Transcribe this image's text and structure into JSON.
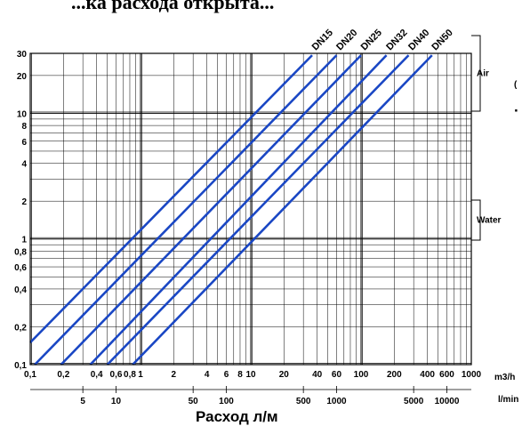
{
  "title": "...ка расхода открыта...",
  "corner_text": "(",
  "corner_dot": "·",
  "chart_data": {
    "type": "line",
    "x_scale": "log",
    "y_scale": "log",
    "xlim": [
      0.1,
      1000
    ],
    "ylim": [
      0.1,
      30
    ],
    "grid": true,
    "xlabel": "Расход л/м",
    "x_unit_top": "m3/h",
    "x_unit_bottom": "l/min",
    "x_ticks_top": [
      "0,1",
      "0,2",
      "0,4",
      "0,6",
      "0,8",
      "1",
      "2",
      "4",
      "6",
      "8",
      "10",
      "20",
      "40",
      "60",
      "100",
      "200",
      "400",
      "600",
      "1000"
    ],
    "x_ticks_bottom": [
      "5",
      "10",
      "50",
      "100",
      "500",
      "1000",
      "5000",
      "10000"
    ],
    "y_ticks": [
      "30",
      "20",
      "10",
      "8",
      "6",
      "4",
      "2",
      "1",
      "0,8",
      "0,6",
      "0,4",
      "0,2",
      "0,1"
    ],
    "bands": [
      {
        "label": "Air"
      },
      {
        "label": "Water"
      }
    ],
    "series": [
      {
        "name": "DN15",
        "x": [
          0.1,
          36
        ],
        "y": [
          0.15,
          29
        ]
      },
      {
        "name": "DN20",
        "x": [
          0.11,
          60
        ],
        "y": [
          0.1,
          29
        ]
      },
      {
        "name": "DN25",
        "x": [
          0.19,
          100
        ],
        "y": [
          0.1,
          29
        ]
      },
      {
        "name": "DN32",
        "x": [
          0.35,
          170
        ],
        "y": [
          0.1,
          29
        ]
      },
      {
        "name": "DN40",
        "x": [
          0.5,
          270
        ],
        "y": [
          0.1,
          29
        ]
      },
      {
        "name": "DN50",
        "x": [
          0.85,
          440
        ],
        "y": [
          0.1,
          29
        ]
      }
    ],
    "line_color": "#1a47c4"
  }
}
